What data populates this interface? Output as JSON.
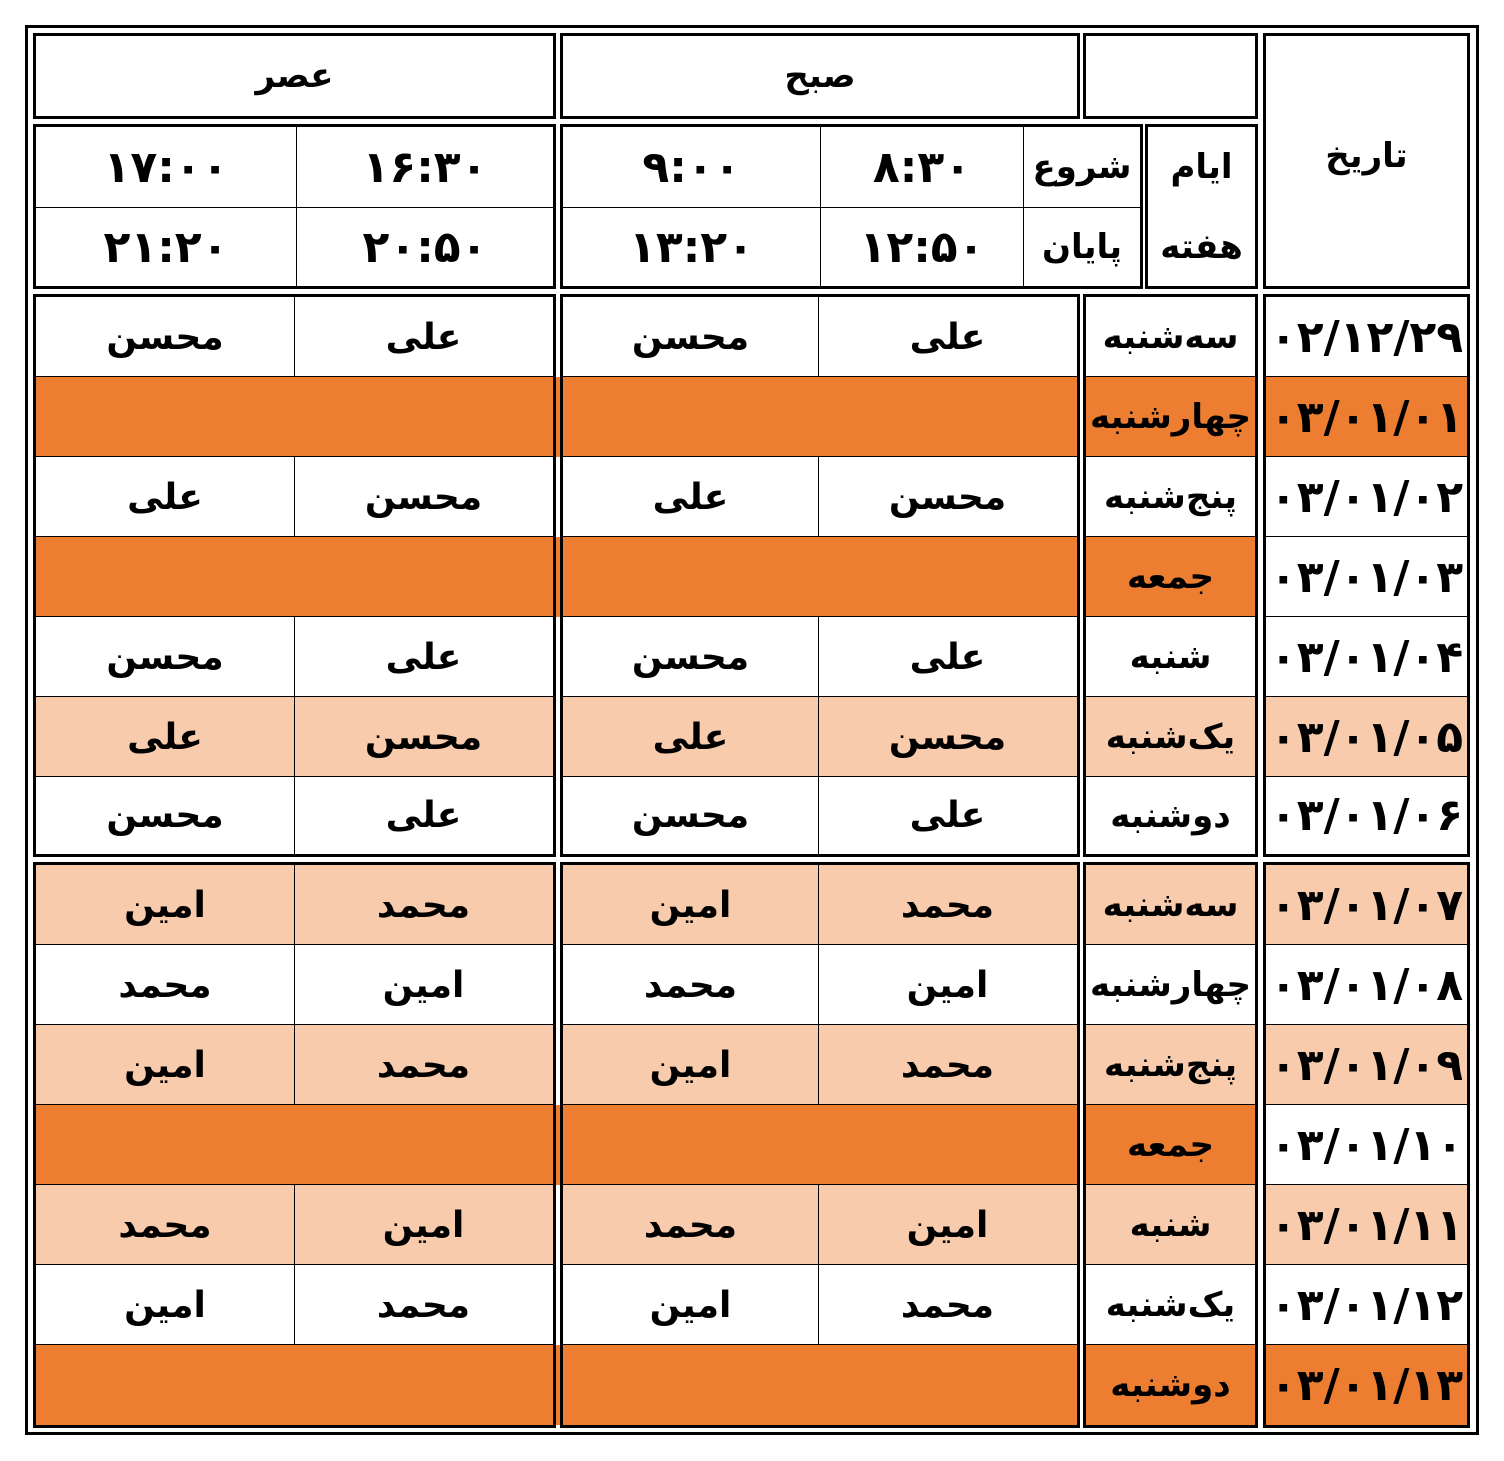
{
  "header": {
    "date_label": "تاریخ",
    "weekday_label_1": "ایام",
    "weekday_label_2": "هفته",
    "start_label": "شروع",
    "end_label": "پایان",
    "morning_label": "صبح",
    "evening_label": "عصر",
    "morning_slot1_start": "۸:۳۰",
    "morning_slot1_end": "۱۲:۵۰",
    "morning_slot2_start": "۹:۰۰",
    "morning_slot2_end": "۱۳:۲۰",
    "evening_slot1_start": "۱۶:۳۰",
    "evening_slot1_end": "۲۰:۵۰",
    "evening_slot2_start": "۱۷:۰۰",
    "evening_slot2_end": "۲۱:۲۰"
  },
  "rows": [
    {
      "date": "۰۲/۱۲/۲۹",
      "day": "سه‌شنبه",
      "m1": "علی",
      "m2": "محسن",
      "e1": "علی",
      "e2": "محسن",
      "row_color": "#FFFFFF",
      "day_color": "#FFFFFF",
      "date_color": "#FFFFFF"
    },
    {
      "date": "۰۳/۰۱/۰۱",
      "day": "چهارشنبه",
      "m1": "",
      "m2": "",
      "e1": "",
      "e2": "",
      "row_color": "#ED7D31",
      "day_color": "#ED7D31",
      "date_color": "#ED7D31"
    },
    {
      "date": "۰۳/۰۱/۰۲",
      "day": "پنج‌شنبه",
      "m1": "محسن",
      "m2": "علی",
      "e1": "محسن",
      "e2": "علی",
      "row_color": "#FFFFFF",
      "day_color": "#FFFFFF",
      "date_color": "#FFFFFF"
    },
    {
      "date": "۰۳/۰۱/۰۳",
      "day": "جمعه",
      "m1": "",
      "m2": "",
      "e1": "",
      "e2": "",
      "row_color": "#ED7D31",
      "day_color": "#ED7D31",
      "date_color": "#FFFFFF"
    },
    {
      "date": "۰۳/۰۱/۰۴",
      "day": "شنبه",
      "m1": "علی",
      "m2": "محسن",
      "e1": "علی",
      "e2": "محسن",
      "row_color": "#FFFFFF",
      "day_color": "#FFFFFF",
      "date_color": "#FFFFFF"
    },
    {
      "date": "۰۳/۰۱/۰۵",
      "day": "یک‌شنبه",
      "m1": "محسن",
      "m2": "علی",
      "e1": "محسن",
      "e2": "علی",
      "row_color": "#F8CBAD",
      "day_color": "#F8CBAD",
      "date_color": "#F8CBAD"
    },
    {
      "date": "۰۳/۰۱/۰۶",
      "day": "دوشنبه",
      "m1": "علی",
      "m2": "محسن",
      "e1": "علی",
      "e2": "محسن",
      "row_color": "#FFFFFF",
      "day_color": "#FFFFFF",
      "date_color": "#FFFFFF"
    },
    {
      "date": "۰۳/۰۱/۰۷",
      "day": "سه‌شنبه",
      "m1": "محمد",
      "m2": "امین",
      "e1": "محمد",
      "e2": "امین",
      "row_color": "#F8CBAD",
      "day_color": "#F8CBAD",
      "date_color": "#F8CBAD"
    },
    {
      "date": "۰۳/۰۱/۰۸",
      "day": "چهارشنبه",
      "m1": "امین",
      "m2": "محمد",
      "e1": "امین",
      "e2": "محمد",
      "row_color": "#FFFFFF",
      "day_color": "#FFFFFF",
      "date_color": "#FFFFFF"
    },
    {
      "date": "۰۳/۰۱/۰۹",
      "day": "پنج‌شنبه",
      "m1": "محمد",
      "m2": "امین",
      "e1": "محمد",
      "e2": "امین",
      "row_color": "#F8CBAD",
      "day_color": "#F8CBAD",
      "date_color": "#F8CBAD"
    },
    {
      "date": "۰۳/۰۱/۱۰",
      "day": "جمعه",
      "m1": "",
      "m2": "",
      "e1": "",
      "e2": "",
      "row_color": "#ED7D31",
      "day_color": "#ED7D31",
      "date_color": "#FFFFFF"
    },
    {
      "date": "۰۳/۰۱/۱۱",
      "day": "شنبه",
      "m1": "امین",
      "m2": "محمد",
      "e1": "امین",
      "e2": "محمد",
      "row_color": "#F8CBAD",
      "day_color": "#F8CBAD",
      "date_color": "#F8CBAD"
    },
    {
      "date": "۰۳/۰۱/۱۲",
      "day": "یک‌شنبه",
      "m1": "محمد",
      "m2": "امین",
      "e1": "محمد",
      "e2": "امین",
      "row_color": "#FFFFFF",
      "day_color": "#FFFFFF",
      "date_color": "#FFFFFF"
    },
    {
      "date": "۰۳/۰۱/۱۳",
      "day": "دوشنبه",
      "m1": "",
      "m2": "",
      "e1": "",
      "e2": "",
      "row_color": "#ED7D31",
      "day_color": "#ED7D31",
      "date_color": "#ED7D31"
    }
  ]
}
